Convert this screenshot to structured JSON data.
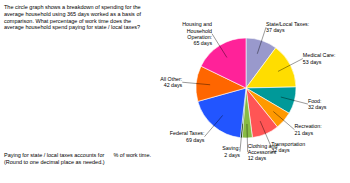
{
  "chart_data": {
    "type": "pie",
    "categories": [
      "State/Local Taxes:\n37 days",
      "Medical Care:\n53 days",
      "Food:\n32 days",
      "Recreation:\n21 days",
      "Transportation\n32 days",
      "Clothing and\nAccessories\n12 days",
      "Saving:\n2 days",
      "Federal Taxes:\n69 days",
      "All Other:\n42 days",
      "Housing and\nHousehold\nOperation:\n65 days"
    ],
    "values": [
      37,
      53,
      32,
      21,
      32,
      12,
      2,
      69,
      42,
      65
    ],
    "colors": [
      "#9999CC",
      "#FFDD00",
      "#009999",
      "#FF9900",
      "#FF5555",
      "#88BB44",
      "#004400",
      "#2255FF",
      "#FF6600",
      "#FF2299"
    ],
    "annotations": [
      "The circle graph shows a breakdown of spending for the\naverage household using 365 days worked as a basis of\ncomparison. What percentage of work time does the\naverage household spend paying for state / local taxes?",
      "Paying for state / local taxes accounts for      % of work time.\n(Round to one decimal place as needed.)"
    ]
  }
}
